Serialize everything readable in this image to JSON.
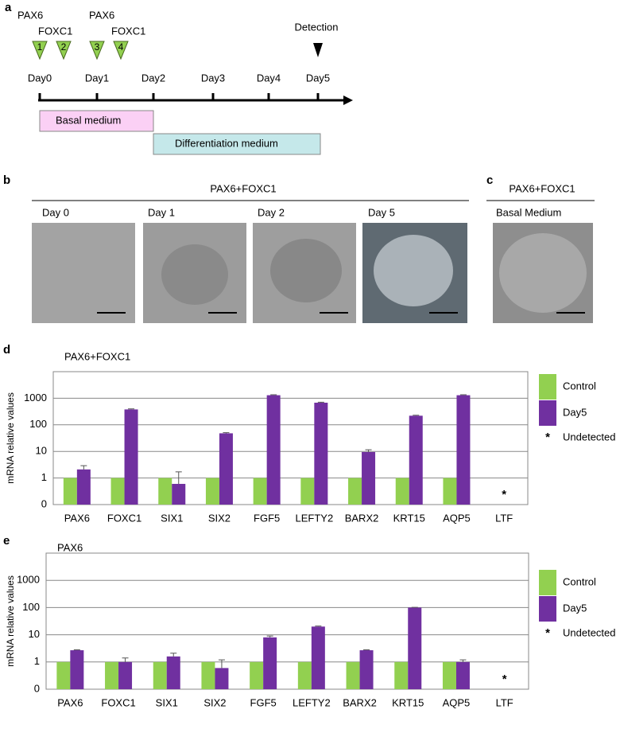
{
  "panel_a": {
    "label": "a",
    "pulses": [
      {
        "gene": "PAX6",
        "number": 1
      },
      {
        "gene": "FOXC1",
        "number": 2
      },
      {
        "gene": "PAX6",
        "number": 3
      },
      {
        "gene": "FOXC1",
        "number": 4
      }
    ],
    "detection": "Detection",
    "days": [
      "Day0",
      "Day1",
      "Day2",
      "Day3",
      "Day4",
      "Day5"
    ],
    "basal_medium": "Basal medium",
    "differentiation_medium": "Differentiation medium"
  },
  "panel_b": {
    "label": "b",
    "title": "PAX6+FOXC1",
    "images": [
      "Day 0",
      "Day 1",
      "Day 2",
      "Day 5"
    ]
  },
  "panel_c": {
    "label": "c",
    "title": "PAX6+FOXC1",
    "images": [
      "Basal Medium"
    ]
  },
  "chart_data": [
    {
      "type": "bar",
      "panel_label": "d",
      "title": "PAX6+FOXC1",
      "y_label": "mRNA relative values",
      "log_scale": true,
      "grid": true,
      "categories": [
        "PAX6",
        "FOXC1",
        "SIX1",
        "SIX2",
        "FGF5",
        "LEFTY2",
        "BARX2",
        "KRT15",
        "AQP5",
        "LTF"
      ],
      "series": [
        {
          "name": "Control",
          "color": "#92d050",
          "values": [
            1,
            1,
            1,
            1,
            1,
            1,
            1,
            1,
            1,
            null
          ]
        },
        {
          "name": "Day5",
          "color": "#7030a0",
          "values": [
            2.1,
            380,
            0.6,
            48,
            1300,
            680,
            9.5,
            220,
            1300,
            null
          ],
          "errors": [
            0.8,
            20,
            1.1,
            3,
            50,
            30,
            2,
            10,
            50,
            null
          ]
        }
      ],
      "undetected_marker": "*",
      "undetected_label": "Undetected",
      "ylim": [
        0.1,
        10000
      ],
      "yticks": [
        {
          "value": 0.1,
          "label": "0"
        },
        1,
        10,
        100,
        1000
      ]
    },
    {
      "type": "bar",
      "panel_label": "e",
      "title": "PAX6",
      "y_label": "mRNA relative values",
      "log_scale": true,
      "grid": true,
      "categories": [
        "PAX6",
        "FOXC1",
        "SIX1",
        "SIX2",
        "FGF5",
        "LEFTY2",
        "BARX2",
        "KRT15",
        "AQP5",
        "LTF"
      ],
      "series": [
        {
          "name": "Control",
          "color": "#92d050",
          "values": [
            1,
            1,
            1,
            1,
            1,
            1,
            1,
            1,
            1,
            null
          ]
        },
        {
          "name": "Day5",
          "color": "#7030a0",
          "values": [
            2.7,
            1,
            1.6,
            0.6,
            8,
            20,
            2.7,
            100,
            1,
            null
          ],
          "errors": [
            0.1,
            0.4,
            0.5,
            0.6,
            1,
            1,
            0.1,
            2,
            0.2,
            null
          ]
        }
      ],
      "undetected_marker": "*",
      "undetected_label": "Undetected",
      "ylim": [
        0.1,
        10000
      ],
      "yticks": [
        {
          "value": 0.1,
          "label": "0"
        },
        1,
        10,
        100,
        1000
      ]
    }
  ]
}
